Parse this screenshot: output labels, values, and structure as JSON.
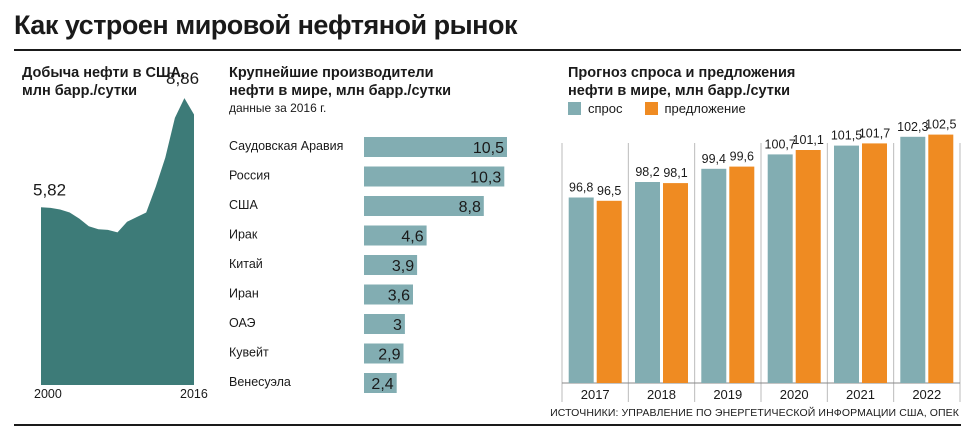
{
  "title": "Как устроен мировой нефтяной рынок",
  "source": "ИСТОЧНИКИ: УПРАВЛЕНИЕ ПО ЭНЕРГЕТИЧЕСКОЙ ИНФОРМАЦИИ США, ОПЕК",
  "colors": {
    "teal": "#3d7b78",
    "bar": "#82adb2",
    "orange": "#ef8b22",
    "grid": "#bbbbbb"
  },
  "chart_data": [
    {
      "type": "area",
      "title": "Добыча нефти в США,\nмлн барр./сутки",
      "x": [
        2000,
        2001,
        2002,
        2003,
        2004,
        2005,
        2006,
        2007,
        2008,
        2009,
        2010,
        2011,
        2012,
        2013,
        2014,
        2015,
        2016
      ],
      "values": [
        5.82,
        5.8,
        5.75,
        5.65,
        5.45,
        5.2,
        5.1,
        5.08,
        5.0,
        5.35,
        5.5,
        5.65,
        6.5,
        7.45,
        8.75,
        9.4,
        8.86
      ],
      "first_label": "5,82",
      "last_label": "8,86",
      "x_labels": [
        "2000",
        "2016"
      ],
      "ylim": [
        0,
        9.5
      ]
    },
    {
      "type": "bar",
      "orientation": "horizontal",
      "title": "Крупнейшие производители\nнефти в мире, млн барр./сутки",
      "note": "данные за 2016 г.",
      "categories": [
        "Саудовская Аравия",
        "Россия",
        "США",
        "Ирак",
        "Китай",
        "Иран",
        "ОАЭ",
        "Кувейт",
        "Венесуэла"
      ],
      "values": [
        10.5,
        10.3,
        8.8,
        4.6,
        3.9,
        3.6,
        3,
        2.9,
        2.4
      ],
      "value_labels": [
        "10,5",
        "10,3",
        "8,8",
        "4,6",
        "3,9",
        "3,6",
        "3",
        "2,9",
        "2,4"
      ]
    },
    {
      "type": "bar",
      "title": "Прогноз спроса и предложения\nнефти в мире, млн барр./сутки",
      "categories": [
        "2017",
        "2018",
        "2019",
        "2020",
        "2021",
        "2022"
      ],
      "series": [
        {
          "name": "спрос",
          "values": [
            96.8,
            98.2,
            99.4,
            100.7,
            101.5,
            102.3
          ],
          "labels": [
            "96,8",
            "98,2",
            "99,4",
            "100,7",
            "101,5",
            "102,3"
          ]
        },
        {
          "name": "предложение",
          "values": [
            96.5,
            98.1,
            99.6,
            101.1,
            101.7,
            102.5
          ],
          "labels": [
            "96,5",
            "98,1",
            "99,6",
            "101,1",
            "101,7",
            "102,5"
          ]
        }
      ],
      "baseline": 80,
      "ylim": [
        80,
        104
      ],
      "grid": true
    }
  ]
}
